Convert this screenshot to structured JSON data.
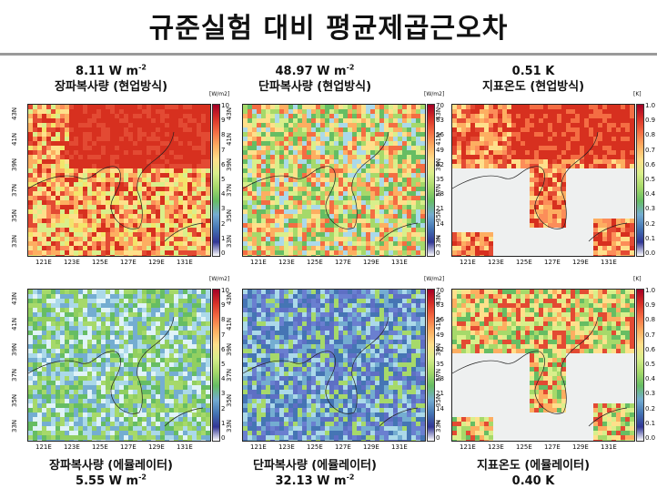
{
  "title": "규준실험 대비 평균제곱근오차",
  "panels": [
    {
      "line1": "8.11 W m",
      "sup": "-2",
      "line2": "장파복사량 (현업방식)",
      "unit": "[W/m2]",
      "ticks": [
        "10",
        "9",
        "8",
        "7",
        "6",
        "5",
        "4",
        "3",
        "2",
        "1",
        "0"
      ],
      "colormap": "redheavy"
    },
    {
      "line1": "48.97 W m",
      "sup": "-2",
      "line2": "단파복사량 (현업방식)",
      "unit": "[W/m2]",
      "ticks": [
        "70",
        "63",
        "56",
        "49",
        "42",
        "35",
        "28",
        "21",
        "14",
        "7",
        "0"
      ],
      "colormap": "mixed"
    },
    {
      "line1": "0.51 K",
      "sup": "",
      "line2": "지표온도 (현업방식)",
      "unit": "[K]",
      "ticks": [
        "1.0",
        "0.9",
        "0.8",
        "0.7",
        "0.6",
        "0.5",
        "0.4",
        "0.3",
        "0.2",
        "0.1",
        "0.0"
      ],
      "colormap": "temp"
    },
    {
      "line1": "장파복사량 (에뮬레이터)",
      "line2": "5.55 W m",
      "sup": "-2",
      "unit": "[W/m2]",
      "ticks": [
        "10",
        "9",
        "8",
        "7",
        "6",
        "5",
        "4",
        "3",
        "2",
        "1",
        "0"
      ],
      "colormap": "bluegreen"
    },
    {
      "line1": "단파복사량 (에뮬레이터)",
      "line2": "32.13 W m",
      "sup": "-2",
      "unit": "[W/m2]",
      "ticks": [
        "70",
        "63",
        "56",
        "49",
        "42",
        "35",
        "28",
        "21",
        "14",
        "7",
        "0"
      ],
      "colormap": "blue"
    },
    {
      "line1": "지표온도 (에뮬레이터)",
      "line2": "0.40 K",
      "sup": "",
      "unit": "[K]",
      "ticks": [
        "1.0",
        "0.9",
        "0.8",
        "0.7",
        "0.6",
        "0.5",
        "0.4",
        "0.3",
        "0.2",
        "0.1",
        "0.0"
      ],
      "colormap": "temp2"
    }
  ],
  "lat_labels": [
    "43N",
    "41N",
    "39N",
    "37N",
    "35N",
    "33N"
  ],
  "lon_labels": [
    "121E",
    "123E",
    "125E",
    "127E",
    "129E",
    "131E"
  ]
}
